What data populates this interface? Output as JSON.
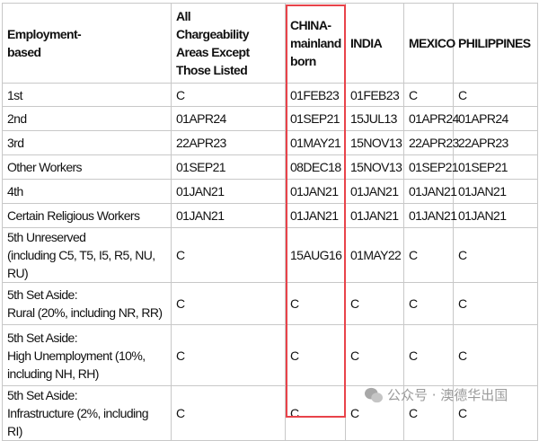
{
  "table": {
    "headers": [
      "Employment-based",
      "All Chargeability Areas Except Those Listed",
      "CHINA-mainland born",
      "INDIA",
      "MEXICO",
      "PHILIPPINES"
    ],
    "rows": [
      [
        "1st",
        "C",
        "01FEB23",
        "01FEB23",
        "C",
        "C"
      ],
      [
        "2nd",
        "01APR24",
        "01SEP21",
        "15JUL13",
        "01APR24",
        "01APR24"
      ],
      [
        "3rd",
        "22APR23",
        "01MAY21",
        "15NOV13",
        "22APR23",
        "22APR23"
      ],
      [
        "Other Workers",
        "01SEP21",
        "08DEC18",
        "15NOV13",
        "01SEP21",
        "01SEP21"
      ],
      [
        "4th",
        "01JAN21",
        "01JAN21",
        "01JAN21",
        "01JAN21",
        "01JAN21"
      ],
      [
        "Certain Religious Workers",
        "01JAN21",
        "01JAN21",
        "01JAN21",
        "01JAN21",
        "01JAN21"
      ],
      [
        "5th Unreserved (including C5, T5, I5, R5, NU, RU)",
        "C",
        "15AUG16",
        "01MAY22",
        "C",
        "C"
      ],
      [
        "5th Set Aside: Rural (20%, including NR, RR)",
        "C",
        "C",
        "C",
        "C",
        "C"
      ],
      [
        "5th Set Aside: High Unemployment (10%, including NH, RH)",
        "C",
        "C",
        "C",
        "C",
        "C"
      ],
      [
        "5th Set Aside: Infrastructure (2%, including RI)",
        "C",
        "C",
        "C",
        "C",
        "C"
      ]
    ],
    "highlight_color": "#e8434a",
    "highlighted_column": "CHINA-mainland born"
  },
  "watermark": {
    "icon": "wechat-icon",
    "text": "公众号 · 澳德华出国"
  }
}
